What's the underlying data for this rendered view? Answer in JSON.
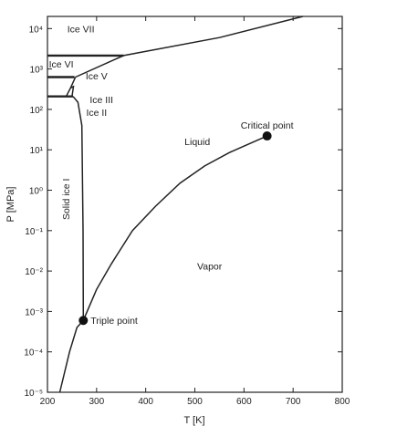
{
  "chart_data": {
    "type": "line",
    "title": "",
    "xlabel": "T [K]",
    "ylabel": "P [MPa]",
    "xscale": "linear",
    "yscale": "log",
    "xlim": [
      200,
      800
    ],
    "ylim": [
      1e-05,
      20000
    ],
    "grid": false,
    "x_ticks": [
      {
        "value": 200,
        "label": "200"
      },
      {
        "value": 300,
        "label": "300"
      },
      {
        "value": 400,
        "label": "400"
      },
      {
        "value": 500,
        "label": "500"
      },
      {
        "value": 600,
        "label": "600"
      },
      {
        "value": 700,
        "label": "700"
      },
      {
        "value": 800,
        "label": "800"
      }
    ],
    "y_ticks": [
      {
        "value": 1e-05,
        "label": "10⁻⁵"
      },
      {
        "value": 0.0001,
        "label": "10⁻⁴"
      },
      {
        "value": 0.001,
        "label": "10⁻³"
      },
      {
        "value": 0.01,
        "label": "10⁻²"
      },
      {
        "value": 0.1,
        "label": "10⁻¹"
      },
      {
        "value": 1,
        "label": "10⁰"
      },
      {
        "value": 10,
        "label": "10¹"
      },
      {
        "value": 100,
        "label": "10²"
      },
      {
        "value": 1000,
        "label": "10³"
      },
      {
        "value": 10000,
        "label": "10⁴"
      }
    ],
    "curves": [
      {
        "id": "sublimation",
        "points": [
          [
            225,
            1e-05
          ],
          [
            245,
            0.0001
          ],
          [
            260,
            0.0004
          ],
          [
            273,
            0.0006
          ]
        ]
      },
      {
        "id": "vaporization",
        "points": [
          [
            273,
            0.0006
          ],
          [
            300,
            0.0035
          ],
          [
            330,
            0.015
          ],
          [
            373,
            0.1
          ],
          [
            420,
            0.4
          ],
          [
            470,
            1.5
          ],
          [
            520,
            4
          ],
          [
            570,
            8.5
          ],
          [
            610,
            14
          ],
          [
            647,
            22
          ]
        ]
      },
      {
        "id": "melting-ice-i",
        "points": [
          [
            273,
            0.0006
          ],
          [
            272.5,
            0.1
          ],
          [
            270,
            40
          ],
          [
            262,
            150
          ],
          [
            252,
            209
          ]
        ]
      },
      {
        "id": "ice-ii-boundary",
        "points": [
          [
            180,
            210
          ],
          [
            252,
            210
          ]
        ]
      },
      {
        "id": "ice-vi-lower",
        "points": [
          [
            180,
            630
          ],
          [
            255,
            630
          ]
        ]
      },
      {
        "id": "ice-vii-lower",
        "points": [
          [
            180,
            2150
          ],
          [
            355,
            2150
          ]
        ]
      },
      {
        "id": "ice-vi-vii-boundary",
        "points": [
          [
            257,
            630
          ],
          [
            355,
            2150
          ],
          [
            550,
            6000
          ],
          [
            720,
            20000
          ]
        ]
      },
      {
        "id": "ice-iii-box",
        "points": [
          [
            238,
            210
          ],
          [
            247,
            340
          ],
          [
            253,
            370
          ],
          [
            250,
            210
          ]
        ]
      },
      {
        "id": "ice-v-boundary",
        "points": [
          [
            247,
            340
          ],
          [
            257,
            630
          ]
        ]
      }
    ],
    "markers": [
      {
        "name": "Triple point",
        "x": 273,
        "y": 0.0006
      },
      {
        "name": "Critical point",
        "x": 647,
        "y": 22
      }
    ],
    "annotations": [
      {
        "text": "Ice VII",
        "x": 268,
        "y": 8000
      },
      {
        "text": "Ice VI",
        "x": 228,
        "y": 1100
      },
      {
        "text": "Ice V",
        "x": 300,
        "y": 550
      },
      {
        "text": "Ice III",
        "x": 310,
        "y": 145
      },
      {
        "text": "Ice II",
        "x": 300,
        "y": 70
      },
      {
        "text": "Liquid",
        "x": 505,
        "y": 13
      },
      {
        "text": "Solid ice I",
        "x": 245,
        "y": 0.6
      },
      {
        "text": "Vapor",
        "x": 530,
        "y": 0.011
      }
    ]
  }
}
